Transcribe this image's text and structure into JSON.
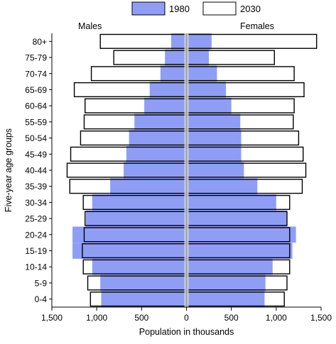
{
  "chart_data": {
    "type": "bar",
    "orientation": "horizontal",
    "layout": "population-pyramid",
    "categories": [
      "0-4",
      "5-9",
      "10-14",
      "15-19",
      "20-24",
      "25-29",
      "30-34",
      "35-39",
      "40-44",
      "45-49",
      "50-54",
      "55-59",
      "60-64",
      "65-69",
      "70-74",
      "75-79",
      "80+"
    ],
    "series": [
      {
        "name": "1980",
        "style": "filled",
        "males": [
          950,
          960,
          1050,
          1270,
          1270,
          1120,
          1050,
          850,
          700,
          670,
          640,
          580,
          470,
          410,
          290,
          240,
          170
        ],
        "females": [
          870,
          880,
          960,
          1180,
          1220,
          1120,
          1000,
          790,
          640,
          610,
          610,
          600,
          500,
          440,
          340,
          250,
          280
        ]
      },
      {
        "name": "2030",
        "style": "outline",
        "males": [
          1070,
          1100,
          1150,
          1160,
          1140,
          1130,
          1150,
          1300,
          1330,
          1290,
          1180,
          1140,
          1130,
          1250,
          1060,
          810,
          960
        ],
        "females": [
          1090,
          1120,
          1150,
          1150,
          1150,
          1120,
          1150,
          1290,
          1330,
          1300,
          1250,
          1190,
          1200,
          1310,
          1200,
          980,
          1450
        ]
      }
    ],
    "xlabel": "Population in thousands",
    "ylabel": "Five-year age groups",
    "side_labels": {
      "left": "Males",
      "right": "Females"
    },
    "xlim": [
      -1500,
      1500
    ],
    "xticks": [
      -1500,
      -1000,
      -500,
      0,
      500,
      1000,
      1500
    ],
    "xtick_labels": [
      "1,500",
      "1,000",
      "500",
      "0",
      "500",
      "1,000",
      "1,500"
    ],
    "grid": false,
    "legend_position": "top-center",
    "colors": {
      "1980": "#8f9ef4",
      "2030": "#ffffff",
      "outline": "#000000",
      "center_line": "#9a9a9a"
    }
  }
}
